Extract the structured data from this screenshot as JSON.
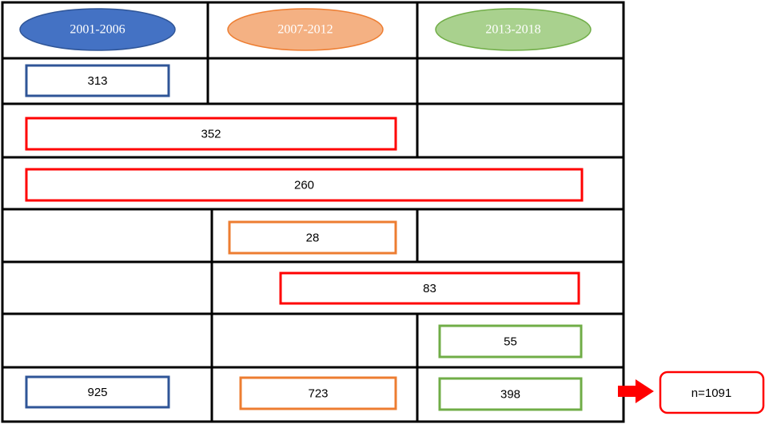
{
  "header": [
    "2001-2006",
    "2007-2012",
    "2013-2018"
  ],
  "rows": [
    313,
    352,
    260,
    28,
    83,
    55
  ],
  "totals": [
    925,
    723,
    398
  ],
  "total_label": "n=1091"
}
